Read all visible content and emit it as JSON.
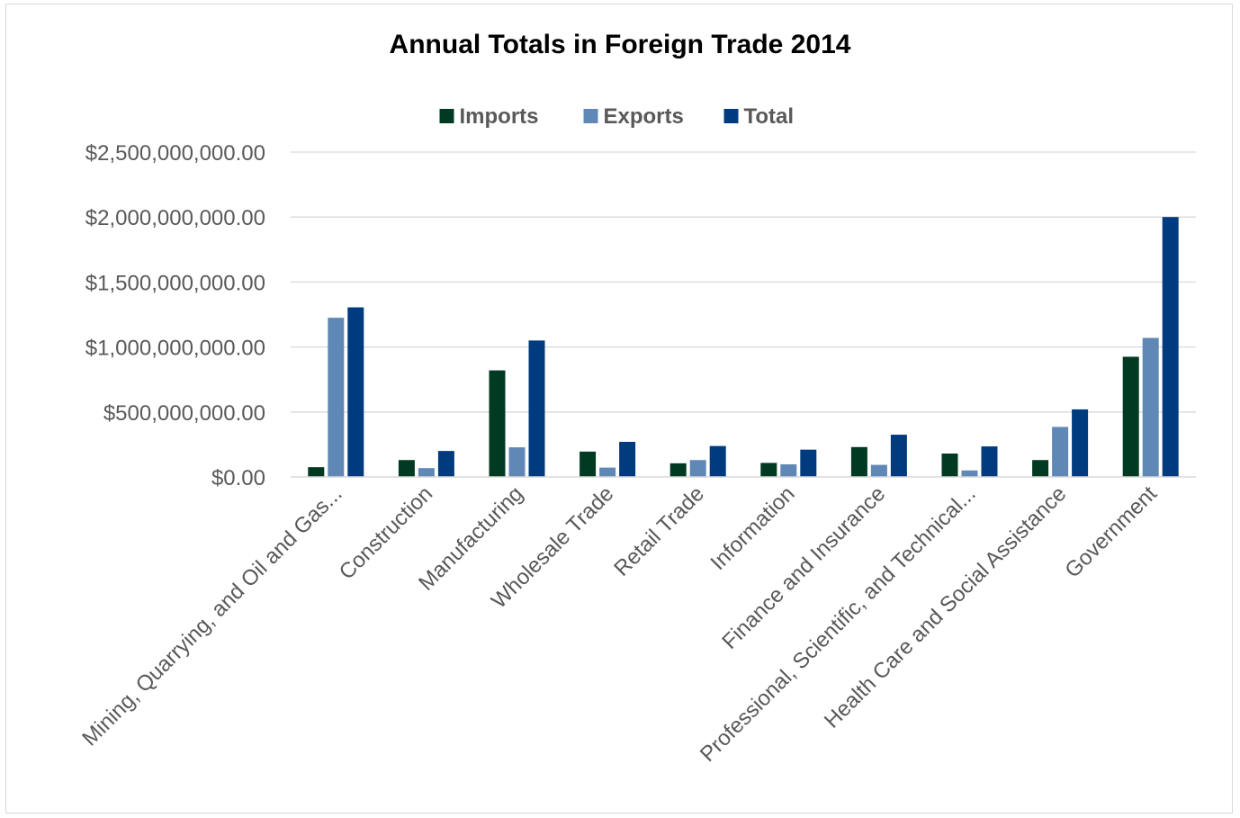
{
  "chart_data": {
    "type": "bar",
    "title": "Annual Totals in Foreign Trade 2014",
    "xlabel": "",
    "ylabel": "",
    "ylim": [
      0,
      2500000000
    ],
    "yticks": [
      0,
      500000000,
      1000000000,
      1500000000,
      2000000000,
      2500000000
    ],
    "ytick_labels": [
      "$0.00",
      "$500,000,000.00",
      "$1,000,000,000.00",
      "$1,500,000,000.00",
      "$2,000,000,000.00",
      "$2,500,000,000.00"
    ],
    "grid": true,
    "legend_position": "top",
    "categories": [
      "Mining, Quarrying, and Oil and Gas...",
      "Construction",
      "Manufacturing",
      "Wholesale Trade",
      "Retail Trade",
      "Information",
      "Finance and Insurance",
      "Professional, Scientific, and Technical...",
      "Health Care and Social Assistance",
      "Government"
    ],
    "series": [
      {
        "name": "Imports",
        "color": "#003a22",
        "values": [
          75000000,
          130000000,
          820000000,
          195000000,
          105000000,
          108000000,
          230000000,
          180000000,
          130000000,
          925000000
        ]
      },
      {
        "name": "Exports",
        "color": "#6088b6",
        "values": [
          1225000000,
          68000000,
          228000000,
          72000000,
          130000000,
          97000000,
          93000000,
          50000000,
          385000000,
          1070000000
        ]
      },
      {
        "name": "Total",
        "color": "#003b7f",
        "values": [
          1305000000,
          200000000,
          1050000000,
          270000000,
          238000000,
          210000000,
          325000000,
          235000000,
          520000000,
          2000000000
        ]
      }
    ]
  }
}
